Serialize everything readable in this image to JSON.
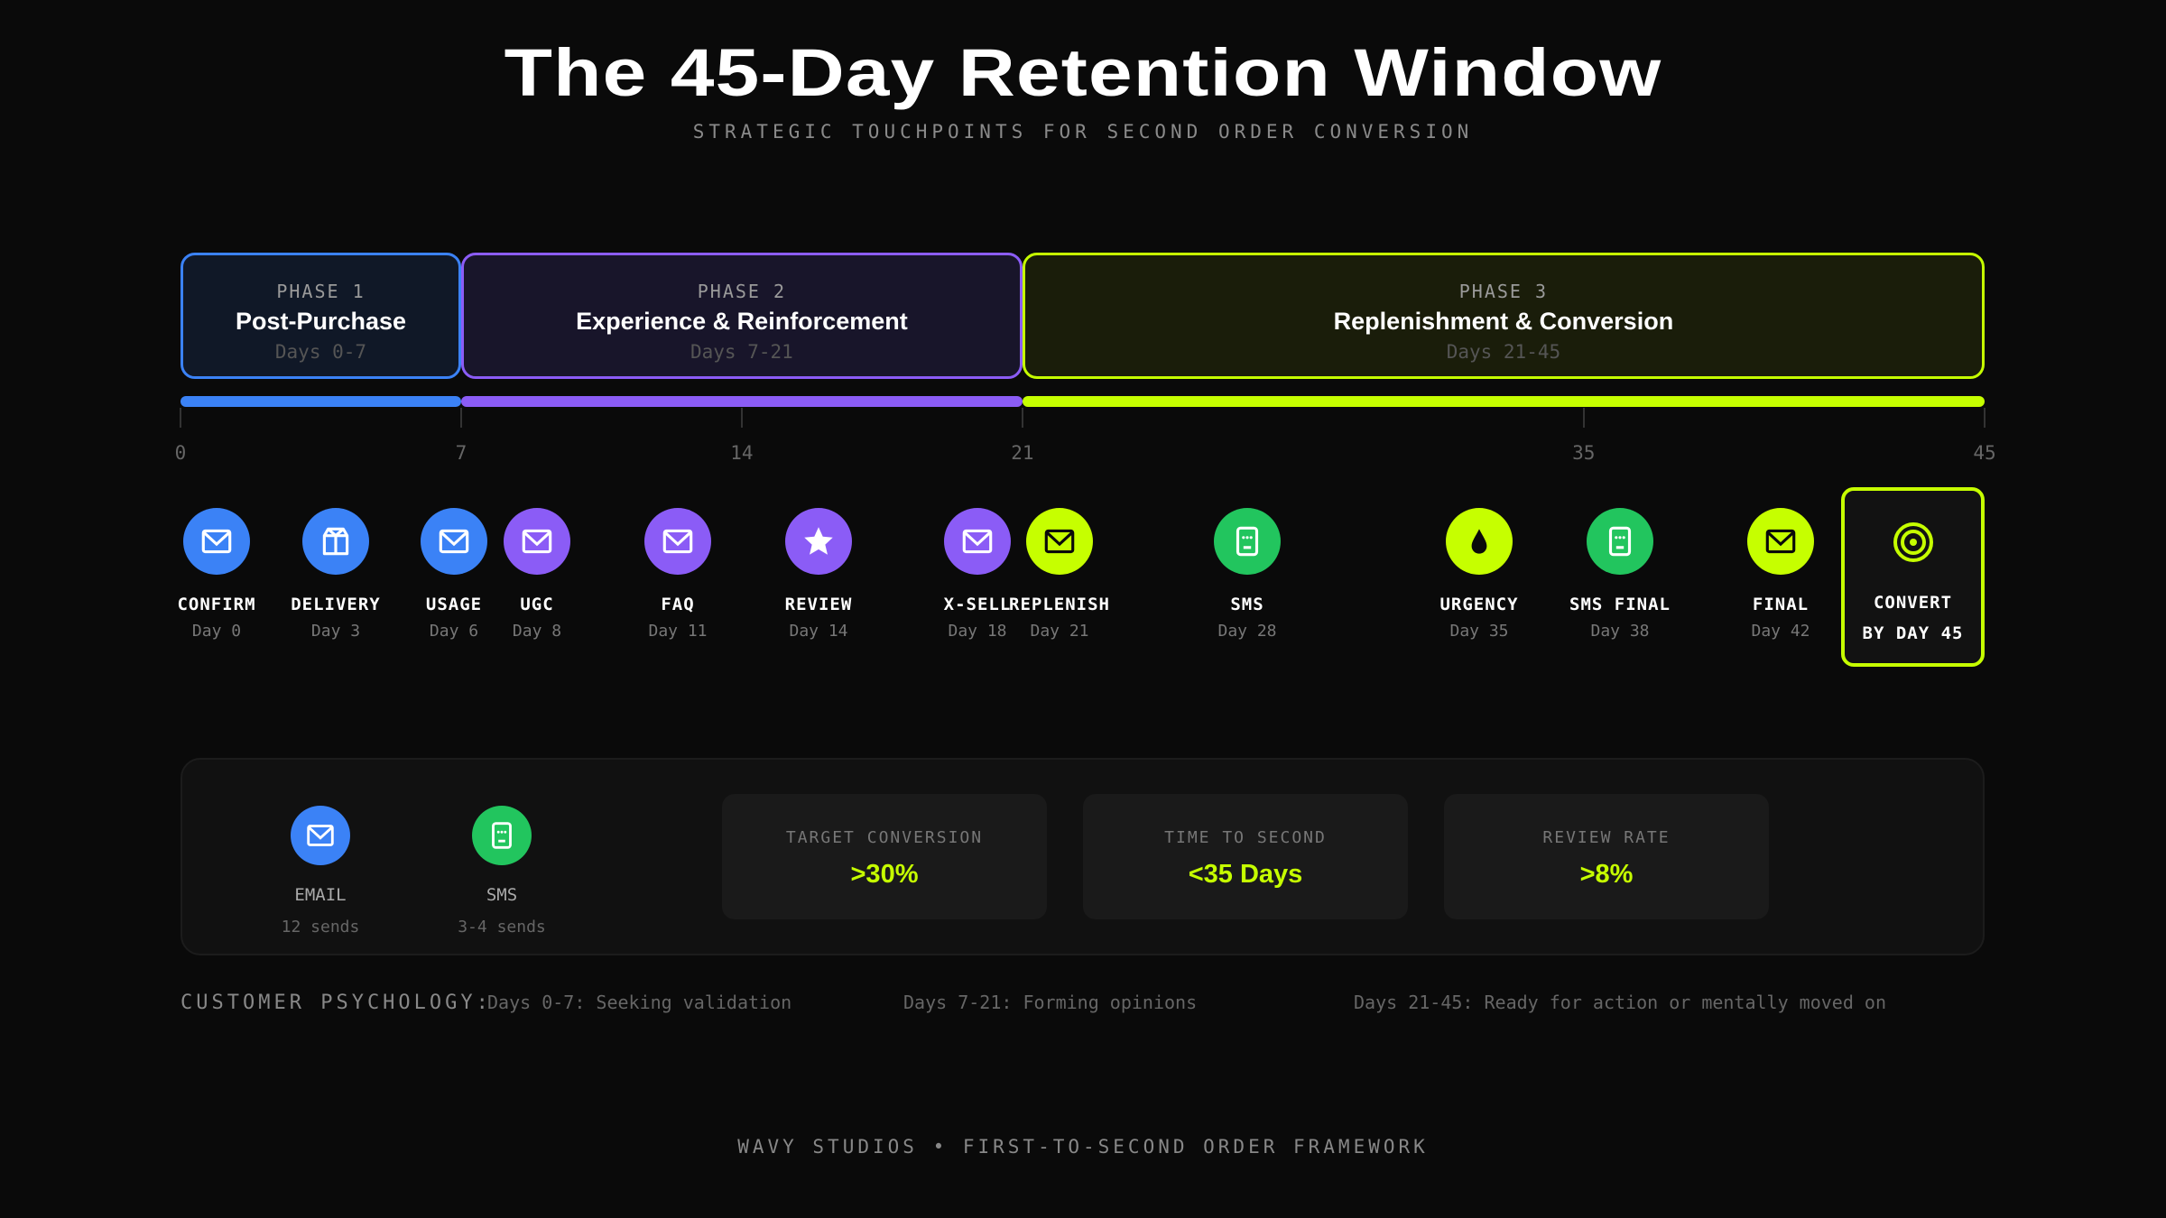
{
  "title": "The 45-Day Retention Window",
  "subtitle": "STRATEGIC TOUCHPOINTS FOR SECOND ORDER CONVERSION",
  "colors": {
    "phase1": "#3b82f6",
    "phase2": "#8b5cf6",
    "phase3": "#c6ff00",
    "sms": "#22c55e",
    "background": "#0a0a0a"
  },
  "phases": [
    {
      "number": "PHASE 1",
      "title": "Post-Purchase",
      "days": "Days 0-7",
      "start": 0,
      "end": 7,
      "color": "#3b82f6",
      "fill": "#101827"
    },
    {
      "number": "PHASE 2",
      "title": "Experience & Reinforcement",
      "days": "Days 7-21",
      "start": 7,
      "end": 21,
      "color": "#8b5cf6",
      "fill": "#18152a"
    },
    {
      "number": "PHASE 3",
      "title": "Replenishment & Conversion",
      "days": "Days 21-45",
      "start": 21,
      "end": 45,
      "color": "#c6ff00",
      "fill": "#1a1d0a"
    }
  ],
  "axis_ticks": [
    "0",
    "7",
    "14",
    "21",
    "35",
    "45"
  ],
  "touchpoints": [
    {
      "label": "CONFIRM",
      "day": "Day 0",
      "icon": "mail-icon",
      "color": "#3b82f6"
    },
    {
      "label": "DELIVERY",
      "day": "Day 3",
      "icon": "box-icon",
      "color": "#3b82f6"
    },
    {
      "label": "USAGE",
      "day": "Day 6",
      "icon": "mail-icon",
      "color": "#3b82f6"
    },
    {
      "label": "UGC",
      "day": "Day 8",
      "icon": "mail-icon",
      "color": "#8b5cf6"
    },
    {
      "label": "FAQ",
      "day": "Day 11",
      "icon": "mail-icon",
      "color": "#8b5cf6"
    },
    {
      "label": "REVIEW",
      "day": "Day 14",
      "icon": "star-icon",
      "color": "#8b5cf6"
    },
    {
      "label": "X-SELL",
      "day": "Day 18",
      "icon": "mail-icon",
      "color": "#8b5cf6"
    },
    {
      "label": "REPLENISH",
      "day": "Day 21",
      "icon": "mail-icon",
      "color": "#c6ff00"
    },
    {
      "label": "SMS",
      "day": "Day 28",
      "icon": "sms-icon",
      "color": "#22c55e"
    },
    {
      "label": "URGENCY",
      "day": "Day 35",
      "icon": "drop-icon",
      "color": "#c6ff00"
    },
    {
      "label": "SMS FINAL",
      "day": "Day 38",
      "icon": "sms-icon",
      "color": "#22c55e"
    },
    {
      "label": "FINAL",
      "day": "Day 42",
      "icon": "mail-icon",
      "color": "#c6ff00"
    }
  ],
  "goal": {
    "line1": "CONVERT",
    "line2": "BY DAY 45",
    "icon": "target-icon"
  },
  "channels": [
    {
      "label": "EMAIL",
      "sends": "12 sends",
      "icon": "mail-icon",
      "color": "#3b82f6"
    },
    {
      "label": "SMS",
      "sends": "3-4 sends",
      "icon": "sms-icon",
      "color": "#22c55e"
    }
  ],
  "stats": [
    {
      "label": "TARGET CONVERSION",
      "value": ">30%"
    },
    {
      "label": "TIME TO SECOND",
      "value": "<35 Days"
    },
    {
      "label": "REVIEW RATE",
      "value": ">8%"
    }
  ],
  "psychology": {
    "label": "CUSTOMER PSYCHOLOGY:",
    "items": [
      "Days 0-7: Seeking validation",
      "Days 7-21: Forming opinions",
      "Days 21-45: Ready for action or mentally moved on"
    ]
  },
  "footer": "WAVY STUDIOS • FIRST-TO-SECOND ORDER FRAMEWORK"
}
